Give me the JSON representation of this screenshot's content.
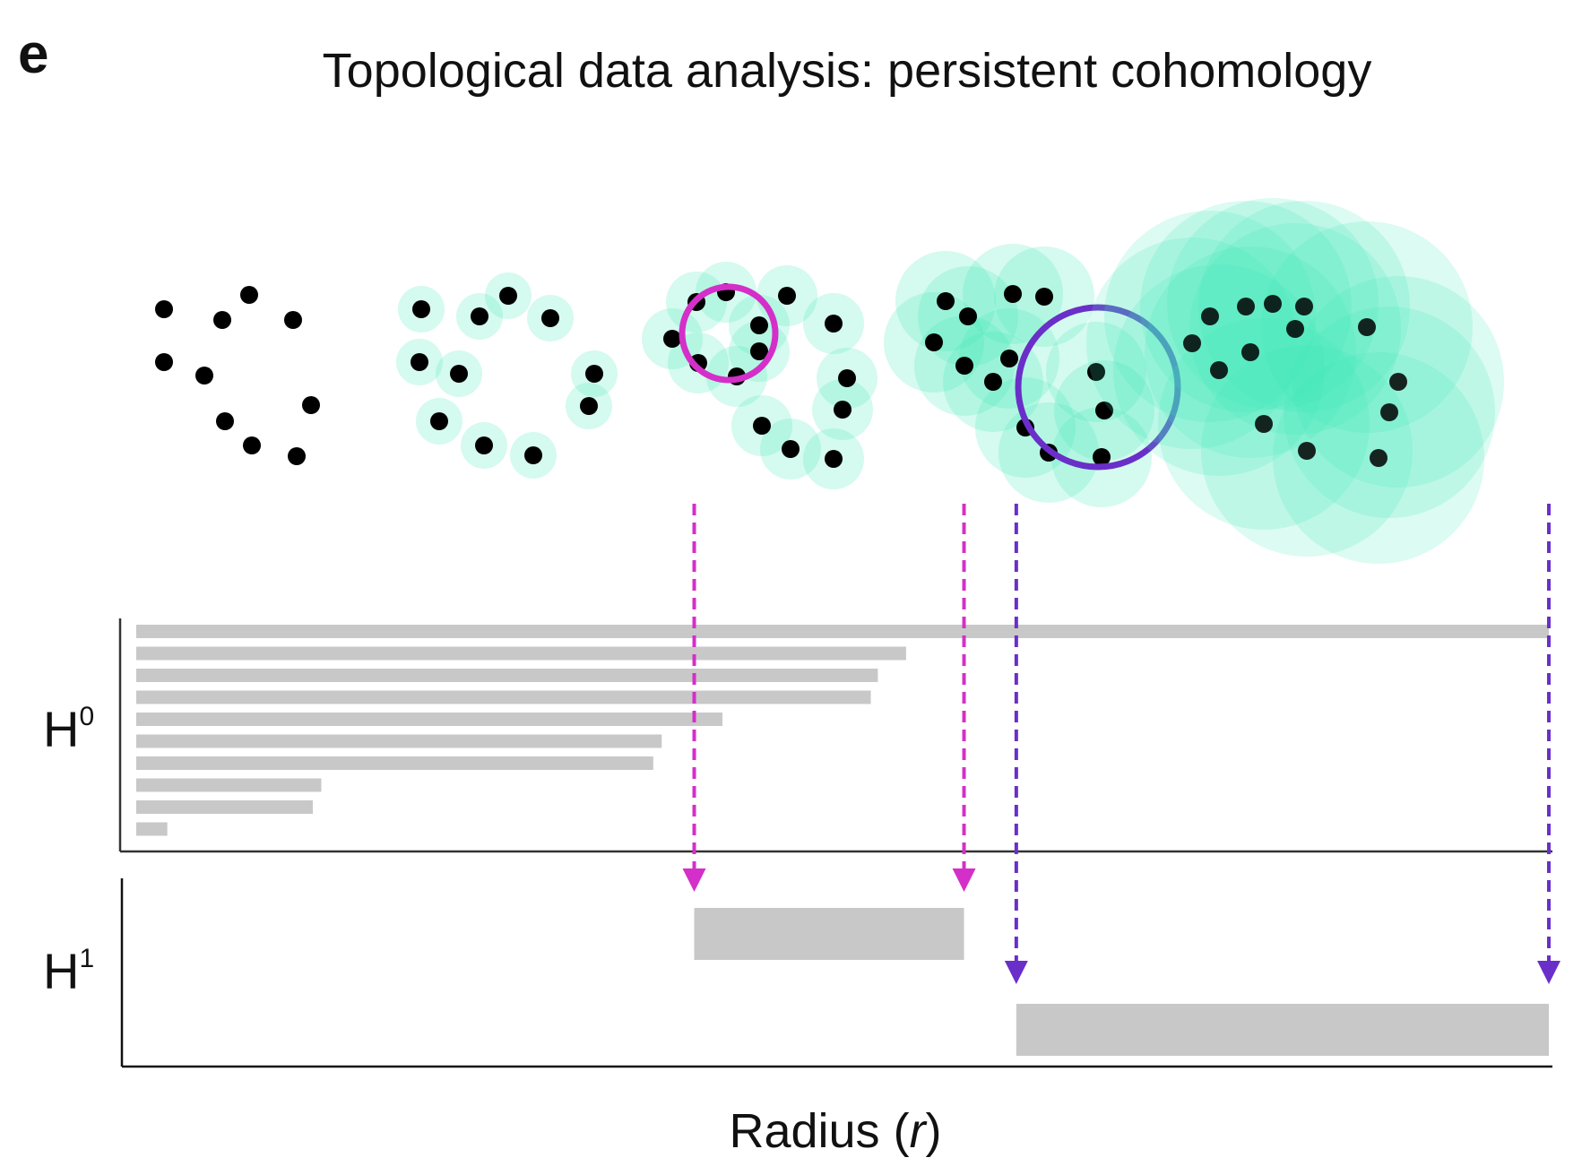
{
  "panel_label": "e",
  "title": "Topological data analysis: persistent cohomology",
  "x_axis_label": "Radius (r)",
  "x_axis_label_parts": {
    "text": "Radius",
    "open": "(",
    "var": "r",
    "close": ")"
  },
  "colors": {
    "point": "#000000",
    "ball": "#3ee8b8",
    "h0_bar": "#c8c8c8",
    "h1_bar": "#c8c8c8",
    "feature_small": "#d42fc8",
    "feature_large": "#6a2fc8",
    "axis": "#333333"
  },
  "chart_data": {
    "type": "barcode",
    "x_axis": "Radius (r)",
    "x_range": [
      0,
      1
    ],
    "groups": [
      {
        "name": "H0",
        "label_base": "H",
        "label_sup": "0",
        "bars": [
          {
            "birth": 0,
            "death": 1.0
          },
          {
            "birth": 0,
            "death": 0.545
          },
          {
            "birth": 0,
            "death": 0.525
          },
          {
            "birth": 0,
            "death": 0.52
          },
          {
            "birth": 0,
            "death": 0.415
          },
          {
            "birth": 0,
            "death": 0.372
          },
          {
            "birth": 0,
            "death": 0.366
          },
          {
            "birth": 0,
            "death": 0.131
          },
          {
            "birth": 0,
            "death": 0.125
          },
          {
            "birth": 0,
            "death": 0.022
          }
        ]
      },
      {
        "name": "H1",
        "label_base": "H",
        "label_sup": "1",
        "bars": [
          {
            "birth": 0.395,
            "death": 0.586,
            "feature": "small loop"
          },
          {
            "birth": 0.623,
            "death": 1.0,
            "feature": "large loop"
          }
        ]
      }
    ],
    "filtration_stages": [
      {
        "radius": 0.0
      },
      {
        "radius": 0.3
      },
      {
        "radius": 0.5
      },
      {
        "radius": 0.7
      },
      {
        "radius": 1.0
      }
    ],
    "feature_markers": [
      {
        "x": 0.395,
        "color": "feature_small"
      },
      {
        "x": 0.586,
        "color": "feature_small"
      },
      {
        "x": 0.623,
        "color": "feature_large"
      },
      {
        "x": 1.0,
        "color": "feature_large"
      }
    ]
  }
}
